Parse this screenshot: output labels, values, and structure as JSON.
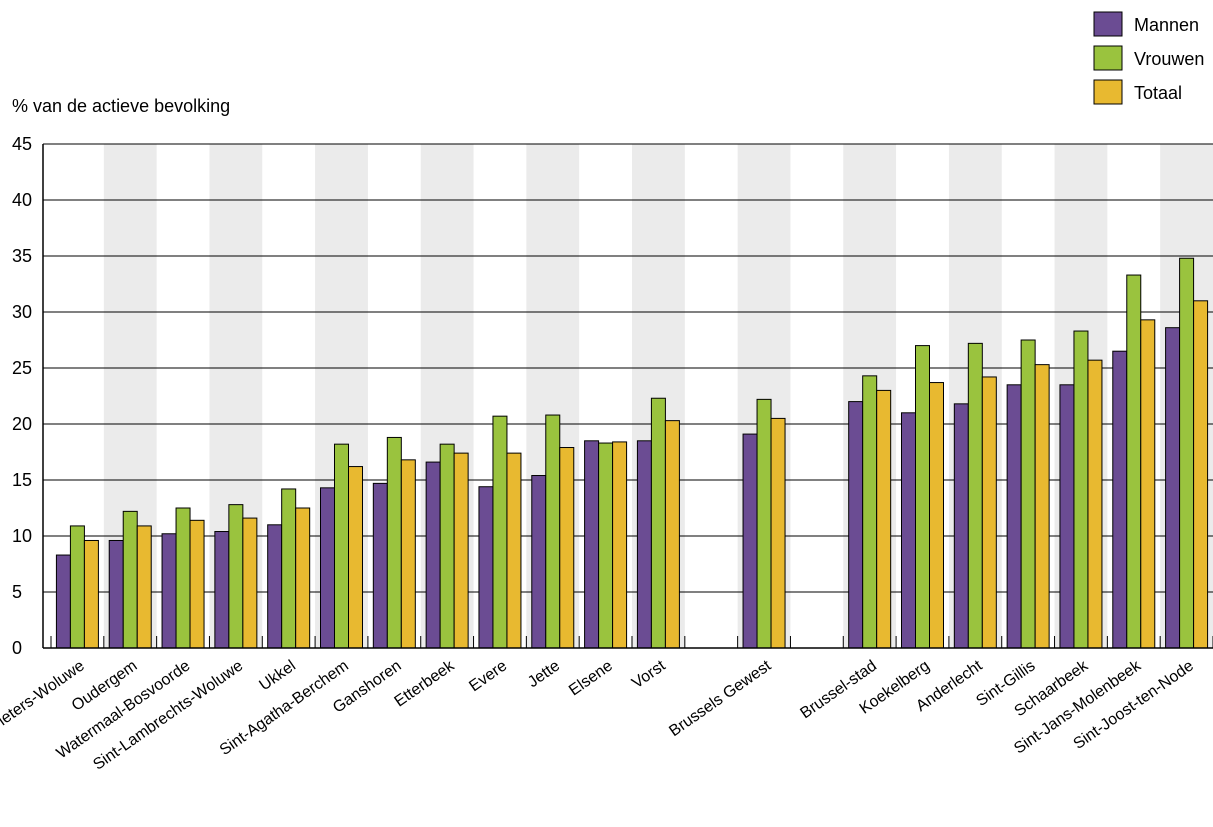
{
  "chart_data": {
    "type": "bar",
    "title": "",
    "ylabel": "% van de actieve bevolking",
    "xlabel": "",
    "ylim": [
      0,
      45
    ],
    "yticks": [
      0,
      5,
      10,
      15,
      20,
      25,
      30,
      35,
      40,
      45
    ],
    "grid": true,
    "legend_position": "top-right",
    "categories": [
      "Sint-Pieters-Woluwe",
      "Oudergem",
      "Watermaal-Bosvoorde",
      "Sint-Lambrechts-Woluwe",
      "Ukkel",
      "Sint-Agatha-Berchem",
      "Ganshoren",
      "Etterbeek",
      "Evere",
      "Jette",
      "Elsene",
      "Vorst",
      "",
      "Brussels Gewest",
      "",
      "Brussel-stad",
      "Koekelberg",
      "Anderlecht",
      "Sint-Gillis",
      "Schaarbeek",
      "Sint-Jans-Molenbeek",
      "Sint-Joost-ten-Node"
    ],
    "series": [
      {
        "name": "Mannen",
        "color": "#6b4c93",
        "values": [
          8.3,
          9.6,
          10.2,
          10.4,
          11.0,
          14.3,
          14.7,
          16.6,
          14.4,
          15.4,
          18.5,
          18.5,
          null,
          19.1,
          null,
          22.0,
          21.0,
          21.8,
          23.5,
          23.5,
          26.5,
          28.6
        ]
      },
      {
        "name": "Vrouwen",
        "color": "#9ac33e",
        "values": [
          10.9,
          12.2,
          12.5,
          12.8,
          14.2,
          18.2,
          18.8,
          18.2,
          20.7,
          20.8,
          18.3,
          22.3,
          null,
          22.2,
          null,
          24.3,
          27.0,
          27.2,
          27.5,
          28.3,
          33.3,
          34.8
        ]
      },
      {
        "name": "Totaal",
        "color": "#e8b930",
        "values": [
          9.6,
          10.9,
          11.4,
          11.6,
          12.5,
          16.2,
          16.8,
          17.4,
          17.4,
          17.9,
          18.4,
          20.3,
          null,
          20.5,
          null,
          23.0,
          23.7,
          24.2,
          25.3,
          25.7,
          29.3,
          31.0
        ]
      }
    ]
  }
}
